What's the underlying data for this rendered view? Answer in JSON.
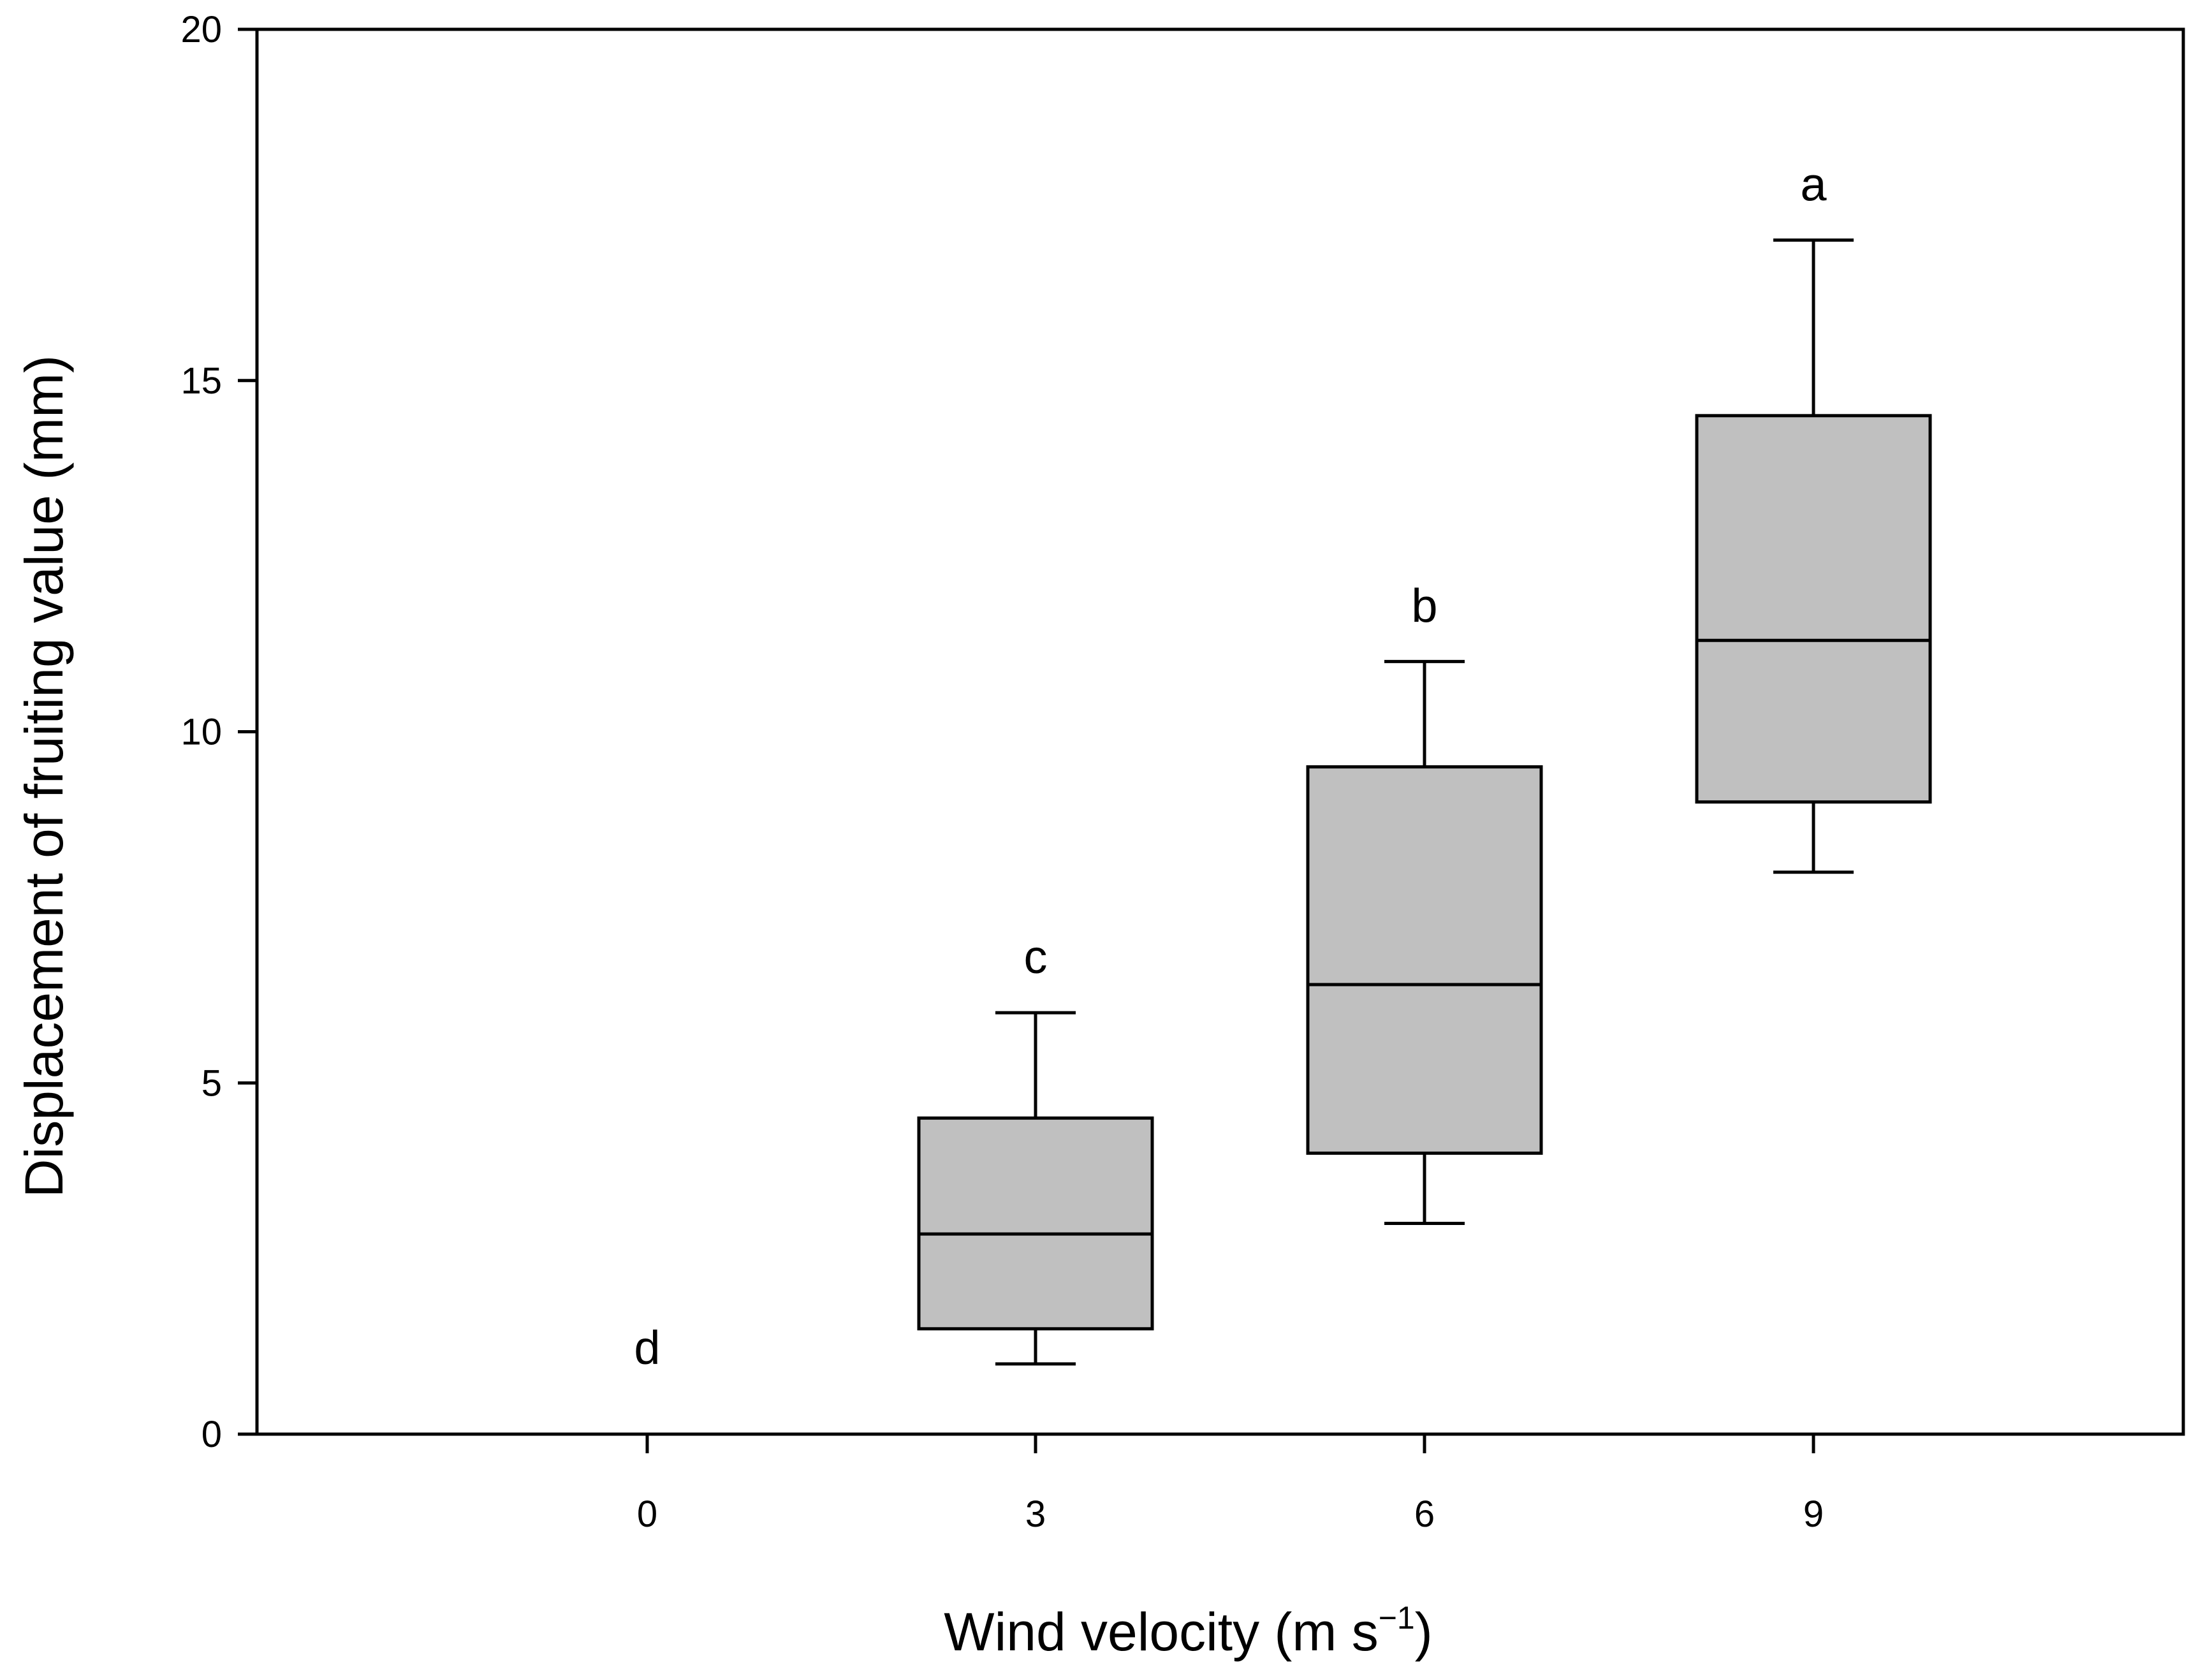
{
  "chart_data": {
    "type": "box",
    "xlabel": "Wind velocity (m s",
    "xlabel_superscript": "−1",
    "xlabel_close": ")",
    "ylabel": "Displacement of fruiting value (mm)",
    "ylim": [
      0,
      20
    ],
    "yticks": [
      0,
      5,
      10,
      15,
      20
    ],
    "x_categories": [
      "0",
      "3",
      "6",
      "9"
    ],
    "box_fill": "#c0c0c0",
    "line_color": "#000000",
    "grid": false,
    "boxes": [
      {
        "x": "0",
        "min": null,
        "q1": null,
        "median": null,
        "q3": null,
        "max": null,
        "significance": "d"
      },
      {
        "x": "3",
        "min": 1.0,
        "q1": 1.5,
        "median": 2.85,
        "q3": 4.5,
        "max": 6.0,
        "significance": "c"
      },
      {
        "x": "6",
        "min": 3.0,
        "q1": 4.0,
        "median": 6.4,
        "q3": 9.5,
        "max": 11.0,
        "significance": "b"
      },
      {
        "x": "9",
        "min": 8.0,
        "q1": 9.0,
        "median": 11.3,
        "q3": 14.5,
        "max": 17.0,
        "significance": "a"
      }
    ]
  }
}
